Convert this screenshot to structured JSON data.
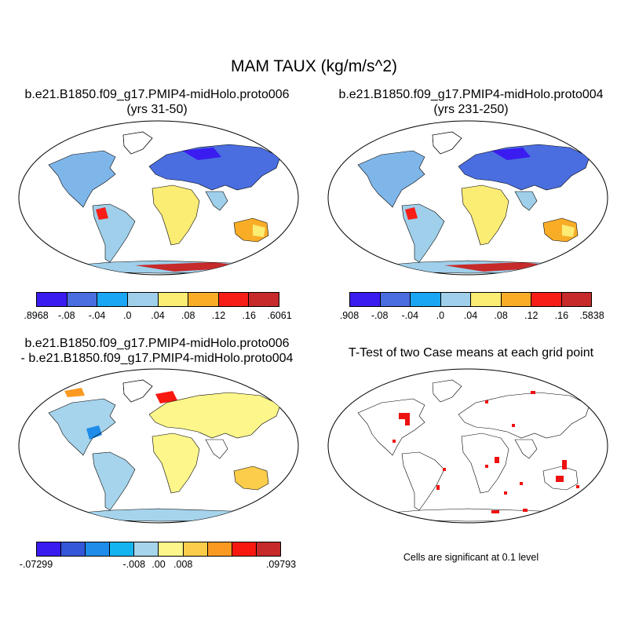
{
  "title": "MAM TAUX (kg/m/s^2)",
  "panels": {
    "top_left": {
      "line1": "b.e21.B1850.f09_g17.PMIP4-midHolo.proto006",
      "line2": "(yrs 31-50)"
    },
    "top_right": {
      "line1": "b.e21.B1850.f09_g17.PMIP4-midHolo.proto004",
      "line2": "(yrs 231-250)"
    },
    "bottom_left": {
      "line1": "b.e21.B1850.f09_g17.PMIP4-midHolo.proto006",
      "line2": "- b.e21.B1850.f09_g17.PMIP4-midHolo.proto004"
    },
    "bottom_right": {
      "line1": "T-Test of two Case means at each grid point"
    }
  },
  "legends": {
    "top_left": {
      "colors": [
        "#3a1cf0",
        "#4a6ee0",
        "#1aa6f2",
        "#9fcfea",
        "#fbec74",
        "#f9ad27",
        "#f61e17",
        "#c62a2a"
      ],
      "labels": [
        ".8968",
        "-.08",
        "-.04",
        ".0",
        ".04",
        ".08",
        ".12",
        ".16",
        ".6061"
      ]
    },
    "top_right": {
      "colors": [
        "#3a1cf0",
        "#4a6ee0",
        "#1aa6f2",
        "#9fcfea",
        "#fbec74",
        "#f9ad27",
        "#f61e17",
        "#c62a2a"
      ],
      "labels": [
        ".908",
        "-.08",
        "-.04",
        ".0",
        ".04",
        ".08",
        ".12",
        ".16",
        ".5838"
      ]
    },
    "bottom_left": {
      "colors": [
        "#3a1cf0",
        "#3456d8",
        "#1e8ce8",
        "#14b4f0",
        "#a6d4ec",
        "#fdf68a",
        "#fccd4a",
        "#fb9a22",
        "#f81810",
        "#c62a2a"
      ],
      "labels": [
        "-.07299",
        "-.008",
        ".00",
        ".008",
        ".09793"
      ]
    }
  },
  "significance_note": "Cells are significant at 0.1 level"
}
